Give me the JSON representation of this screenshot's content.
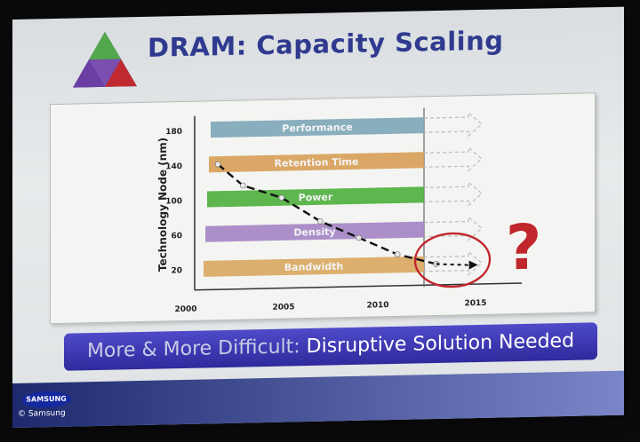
{
  "slide": {
    "title": "DRAM: Capacity Scaling",
    "banner_part1": "More & More Difficult: ",
    "banner_part2": "Disruptive Solution Needed",
    "footer_logo": "SAMSUNG",
    "footer_copyright": "© Samsung",
    "question_mark": "?"
  },
  "colors": {
    "title": "#2f3a8f",
    "banner": "#3a35b0",
    "performance": "#7fa7b9",
    "retention": "#d7a05a",
    "power": "#4fb040",
    "density": "#a585c4",
    "bandwidth": "#d9a863",
    "circle": "#c0262b"
  },
  "chart_data": {
    "type": "line",
    "ylabel": "Technology Node (nm)",
    "xlabel": "",
    "y_ticks": [
      "180",
      "140",
      "100",
      "60",
      "20"
    ],
    "x_ticks": [
      "2000",
      "2005",
      "2010",
      "2015"
    ],
    "bands": [
      {
        "label": "Performance",
        "y": 180
      },
      {
        "label": "Retention Time",
        "y": 140
      },
      {
        "label": "Power",
        "y": 100
      },
      {
        "label": "Density",
        "y": 60
      },
      {
        "label": "Bandwidth",
        "y": 20
      }
    ],
    "series": [
      {
        "values": [
          {
            "x": 2001.2,
            "y": 140
          },
          {
            "x": 2002.5,
            "y": 115
          },
          {
            "x": 2004.5,
            "y": 100
          },
          {
            "x": 2006.5,
            "y": 72
          },
          {
            "x": 2008.5,
            "y": 52
          },
          {
            "x": 2010.5,
            "y": 32
          },
          {
            "x": 2012.5,
            "y": 20
          }
        ]
      },
      {
        "values": [
          {
            "x": 2012.5,
            "y": 20
          },
          {
            "x": 2014.2,
            "y": 18
          }
        ]
      }
    ],
    "xlim": [
      2000,
      2016
    ],
    "ylim": [
      0,
      190
    ]
  }
}
